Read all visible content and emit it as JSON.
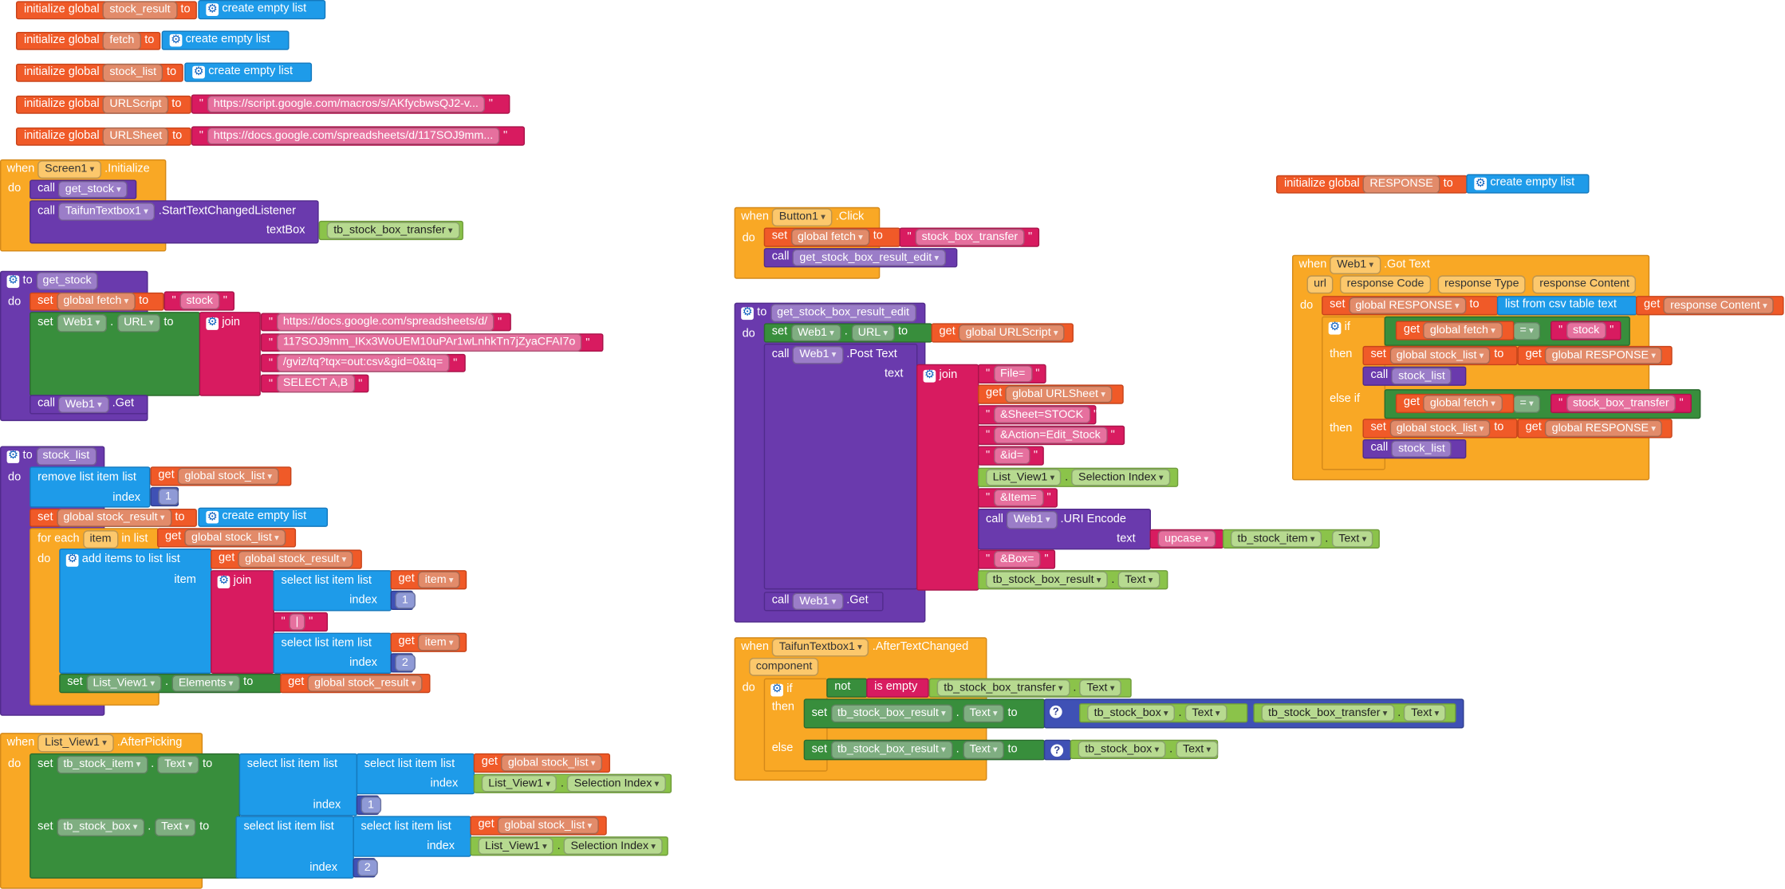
{
  "kw": {
    "init_global": "initialize global",
    "to": "to",
    "create_empty_list": "create empty list",
    "when": "when",
    "do": "do",
    "call": "call",
    "set": "set",
    "get": "get",
    "join": "join",
    "if": "if",
    "then": "then",
    "else": "else",
    "else_if": "else if",
    "not": "not",
    "is_empty": "is empty",
    "upcase": "upcase",
    "list_from_csv": "list from csv table",
    "text": "text",
    "remove_list_item": "remove list item",
    "list": "list",
    "index": "index",
    "for_each": "for each",
    "in_list": "in list",
    "add_items_to_list": "add items to list",
    "item": "item",
    "select_list_item": "select list item",
    "text_param": "textBox",
    "url": "url",
    "eq": "=",
    "minus": "-"
  },
  "globals": {
    "stock_result": "stock_result",
    "fetch": "fetch",
    "stock_list": "stock_list",
    "urlscript": "URLScript",
    "urlsheet": "URLSheet",
    "response": "RESPONSE",
    "urlscript_value": "https://script.google.com/macros/s/AKfycbwsQJ2-v...",
    "urlsheet_value": "https://docs.google.com/spreadsheets/d/117SOJ9mm..."
  },
  "refs": {
    "global_fetch": "global fetch",
    "global_stock_list": "global stock_list",
    "global_stock_result": "global stock_result",
    "global_urlscript": "global URLScript",
    "global_urlsheet": "global URLSheet",
    "global_response": "global RESPONSE"
  },
  "components": {
    "screen1": "Screen1",
    "initialize": ".Initialize",
    "taifun": "TaifunTextbox1",
    "start_listener": ".StartTextChangedListener",
    "tb_transfer": "tb_stock_box_transfer",
    "web1": "Web1",
    "url_prop": "URL",
    "get_method": ".Get",
    "list_view": "List_View1",
    "elements": "Elements",
    "selection_index": "Selection Index",
    "after_picking": ".AfterPicking",
    "tb_item": "tb_stock_item",
    "tb_box": "tb_stock_box",
    "tb_result": "tb_stock_box_result",
    "text_prop": "Text",
    "button1": "Button1",
    "click": ".Click",
    "post_text": ".Post Text",
    "uri_encode": ".URI Encode",
    "after_text_changed": ".AfterTextChanged",
    "component": "component",
    "got_text": ".Got Text",
    "response_code": "response Code",
    "response_type": "response Type",
    "response_content": "response Content"
  },
  "procs": {
    "get_stock": "get_stock",
    "stock_list": "stock_list",
    "edit": "get_stock_box_result_edit"
  },
  "strings": {
    "stock": "stock",
    "sheet_url": "https://docs.google.com/spreadsheets/d/",
    "sheet_id": "117SOJ9mm_IKx3WoUEM10uPAr1wLnhkTn7jZyaCFAI7o",
    "gviz": "/gviz/tq?tqx=out:csv&gid=0&tq=",
    "select": "SELECT A,B",
    "transfer": "stock_box_transfer",
    "sep": " | ",
    "file": "File=",
    "sheet_param": "&Sheet=STOCK",
    "action": "&Action=Edit_Stock",
    "id": "&id=",
    "item_param": "&Item=",
    "box_param": "&Box=",
    "one": "1",
    "two": "2"
  },
  "colors": {
    "global": "#f05a28",
    "event": "#f9a825",
    "procedure": "#6a3aad",
    "component": "#388e3c",
    "list": "#1e9be9",
    "text": "#d81b60",
    "math": "#3f51b5"
  }
}
